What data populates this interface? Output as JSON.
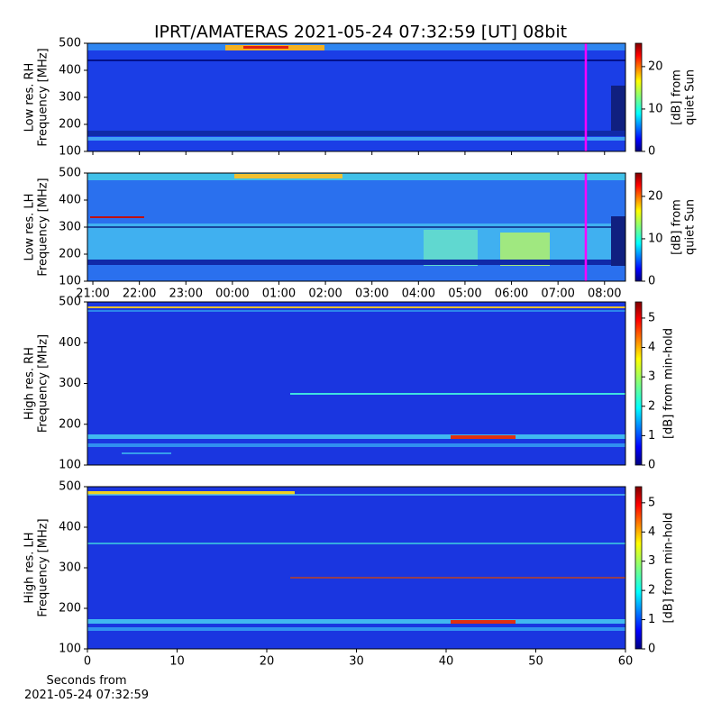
{
  "chart_data": [
    {
      "type": "heatmap",
      "title": "IPRT/AMATERAS 2021-05-24 07:32:59 [UT]   08bit",
      "ylabel": "Low res. RH\nFrequency [MHz]",
      "ylim": [
        100,
        500
      ],
      "yticks": [
        100,
        200,
        300,
        400,
        500
      ],
      "colorbar_label": "[dB] from\nquiet Sun",
      "clim": [
        0,
        25.5
      ],
      "cticks": [
        0,
        10,
        20
      ],
      "colormap": "jet"
    },
    {
      "type": "heatmap",
      "ylabel": "Low res. LH\nFrequency [MHz]",
      "ylim": [
        100,
        500
      ],
      "yticks": [
        100,
        200,
        300,
        400,
        500
      ],
      "xlim": [
        "20:53",
        "08:27"
      ],
      "xticks": [
        "21:00",
        "22:00",
        "23:00",
        "00:00",
        "01:00",
        "02:00",
        "03:00",
        "04:00",
        "05:00",
        "06:00",
        "07:00",
        "08:00"
      ],
      "colorbar_label": "[dB] from\nquiet Sun",
      "clim": [
        0,
        25.5
      ],
      "cticks": [
        0,
        10,
        20
      ],
      "colormap": "jet"
    },
    {
      "type": "heatmap",
      "ylabel": "High res. RH\nFrequency [MHz]",
      "ylim": [
        100,
        500
      ],
      "yticks": [
        100,
        200,
        300,
        400,
        500
      ],
      "colorbar_label": "[dB] from min-hold",
      "clim": [
        0,
        5.55
      ],
      "cticks": [
        0,
        1,
        2,
        3,
        4,
        5
      ],
      "colormap": "jet"
    },
    {
      "type": "heatmap",
      "ylabel": "High res. LH\nFrequency [MHz]",
      "ylim": [
        100,
        500
      ],
      "yticks": [
        100,
        200,
        300,
        400,
        500
      ],
      "xlim": [
        0,
        60
      ],
      "xticks": [
        0,
        10,
        20,
        30,
        40,
        50,
        60
      ],
      "xlabel": "Seconds from\n2021-05-24 07:32:59",
      "colorbar_label": "[dB] from min-hold",
      "clim": [
        0,
        5.55
      ],
      "cticks": [
        0,
        1,
        2,
        3,
        4,
        5
      ],
      "colormap": "jet"
    }
  ]
}
